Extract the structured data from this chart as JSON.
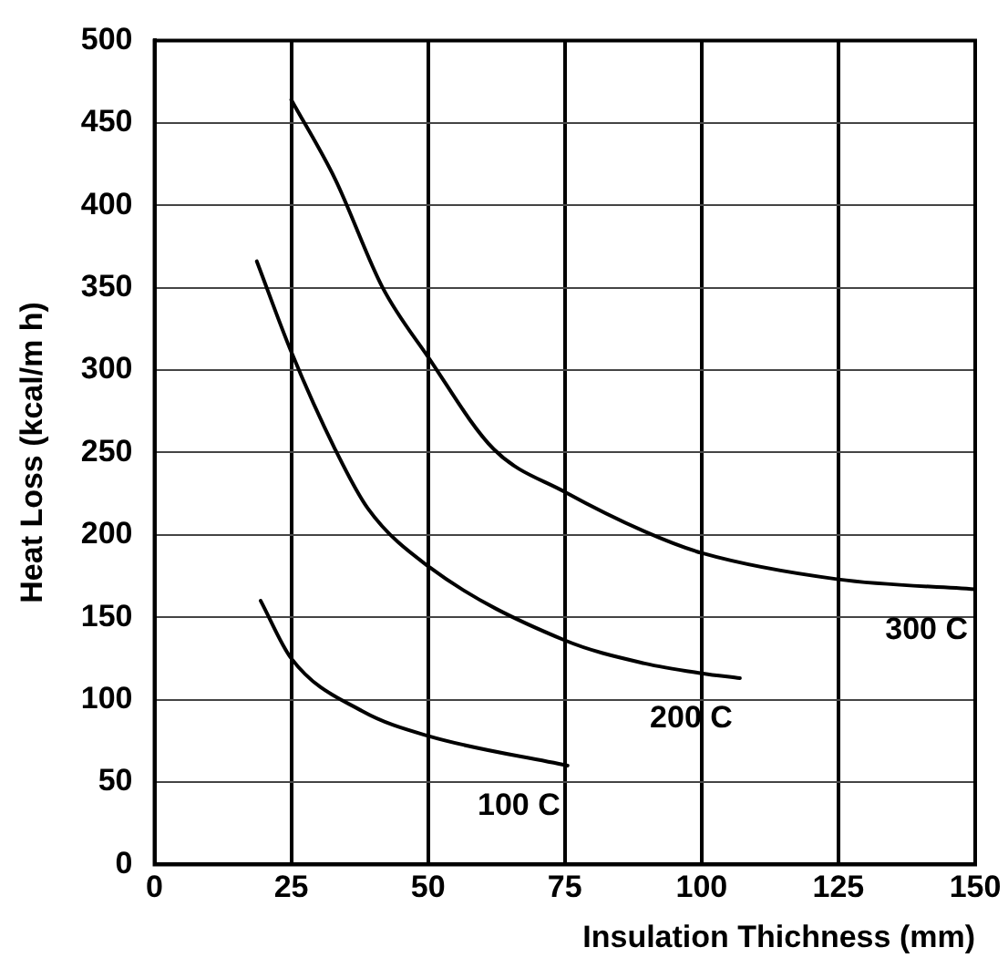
{
  "chart_data": {
    "type": "line",
    "xlabel": "Insulation Thichness (mm)",
    "ylabel": "Heat Loss (kcal/m h)",
    "xlim": [
      0,
      150
    ],
    "xticks": [
      0,
      25,
      50,
      75,
      100,
      125,
      150
    ],
    "ylim": [
      0,
      500
    ],
    "yticks": [
      0,
      50,
      100,
      150,
      200,
      250,
      300,
      350,
      400,
      450,
      500
    ],
    "grid": true,
    "legend": false,
    "marker": "none",
    "line_style": "solid",
    "series": [
      {
        "name": "300 C",
        "color": "#000000",
        "x": [
          25,
          33,
          41.7,
          50,
          62,
          75,
          89.6,
          100,
          125,
          150
        ],
        "values": [
          464,
          416,
          350,
          308,
          252,
          226,
          202,
          189,
          173,
          167
        ]
      },
      {
        "name": "200 C",
        "color": "#000000",
        "x": [
          18.7,
          25,
          33,
          39,
          50,
          75,
          89.6,
          100,
          107
        ],
        "values": [
          366,
          311,
          252,
          216,
          181,
          136,
          122,
          116,
          113
        ]
      },
      {
        "name": "100 C",
        "color": "#000000",
        "x": [
          19.4,
          25,
          38,
          50,
          75.5
        ],
        "values": [
          160,
          125,
          93,
          78,
          60
        ]
      }
    ]
  }
}
